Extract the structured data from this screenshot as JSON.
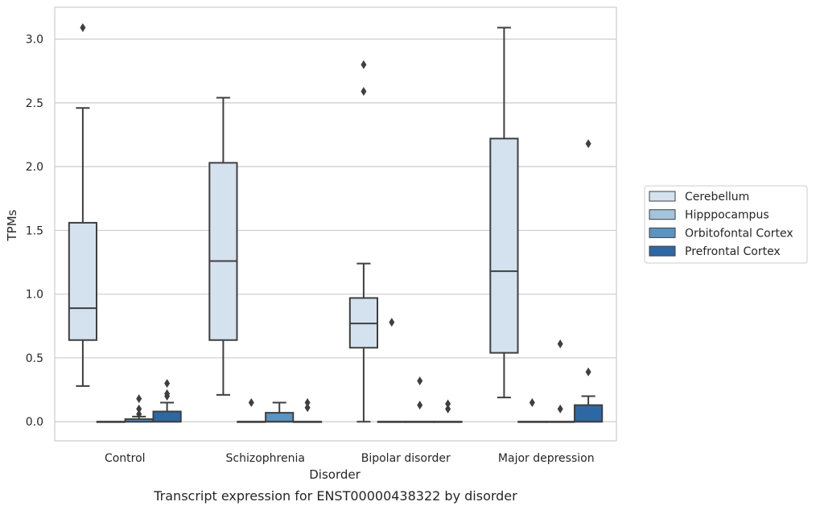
{
  "chart_data": {
    "type": "box",
    "title": "",
    "caption": "Transcript expression for ENST00000438322 by disorder",
    "xlabel": "Disorder",
    "ylabel": "TPMs",
    "ylim": [
      -0.15,
      3.25
    ],
    "yticks": [
      "0.0",
      "0.5",
      "1.0",
      "1.5",
      "2.0",
      "2.5",
      "3.0"
    ],
    "grid": "horizontal",
    "legend_position": "right",
    "categories": [
      "Control",
      "Schizophrenia",
      "Bipolar disorder",
      "Major depression"
    ],
    "series": [
      {
        "name": "Cerebellum",
        "color": "#d4e2f0",
        "boxes": [
          {
            "whisker_low": 0.28,
            "q1": 0.64,
            "median": 0.89,
            "q3": 1.56,
            "whisker_high": 2.46,
            "outliers": [
              3.09
            ]
          },
          {
            "whisker_low": 0.21,
            "q1": 0.64,
            "median": 1.26,
            "q3": 2.03,
            "whisker_high": 2.54,
            "outliers": []
          },
          {
            "whisker_low": 0.0,
            "q1": 0.58,
            "median": 0.77,
            "q3": 0.97,
            "whisker_high": 1.24,
            "outliers": [
              2.59,
              2.8
            ]
          },
          {
            "whisker_low": 0.19,
            "q1": 0.54,
            "median": 1.18,
            "q3": 2.22,
            "whisker_high": 3.09,
            "outliers": []
          }
        ]
      },
      {
        "name": "Hipppocampus",
        "color": "#a3c4dd",
        "boxes": [
          {
            "whisker_low": 0.0,
            "q1": 0.0,
            "median": 0.0,
            "q3": 0.0,
            "whisker_high": 0.0,
            "outliers": []
          },
          {
            "whisker_low": 0.0,
            "q1": 0.0,
            "median": 0.0,
            "q3": 0.0,
            "whisker_high": 0.0,
            "outliers": [
              0.15
            ]
          },
          {
            "whisker_low": 0.0,
            "q1": 0.0,
            "median": 0.0,
            "q3": 0.0,
            "whisker_high": 0.0,
            "outliers": [
              0.78
            ]
          },
          {
            "whisker_low": 0.0,
            "q1": 0.0,
            "median": 0.0,
            "q3": 0.0,
            "whisker_high": 0.0,
            "outliers": [
              0.15
            ]
          }
        ]
      },
      {
        "name": "Orbitofontal Cortex",
        "color": "#5a94c2",
        "boxes": [
          {
            "whisker_low": 0.0,
            "q1": 0.0,
            "median": 0.0,
            "q3": 0.02,
            "whisker_high": 0.04,
            "outliers": [
              0.06,
              0.1,
              0.18
            ]
          },
          {
            "whisker_low": 0.0,
            "q1": 0.0,
            "median": 0.0,
            "q3": 0.07,
            "whisker_high": 0.15,
            "outliers": []
          },
          {
            "whisker_low": 0.0,
            "q1": 0.0,
            "median": 0.0,
            "q3": 0.0,
            "whisker_high": 0.0,
            "outliers": [
              0.13,
              0.32
            ]
          },
          {
            "whisker_low": 0.0,
            "q1": 0.0,
            "median": 0.0,
            "q3": 0.0,
            "whisker_high": 0.0,
            "outliers": [
              0.1,
              0.61
            ]
          }
        ]
      },
      {
        "name": "Prefrontal Cortex",
        "color": "#2c68a6",
        "boxes": [
          {
            "whisker_low": 0.0,
            "q1": 0.0,
            "median": 0.0,
            "q3": 0.08,
            "whisker_high": 0.15,
            "outliers": [
              0.2,
              0.22,
              0.3
            ]
          },
          {
            "whisker_low": 0.0,
            "q1": 0.0,
            "median": 0.0,
            "q3": 0.0,
            "whisker_high": 0.0,
            "outliers": [
              0.11,
              0.15
            ]
          },
          {
            "whisker_low": 0.0,
            "q1": 0.0,
            "median": 0.0,
            "q3": 0.0,
            "whisker_high": 0.0,
            "outliers": [
              0.1,
              0.14
            ]
          },
          {
            "whisker_low": 0.0,
            "q1": 0.0,
            "median": 0.0,
            "q3": 0.13,
            "whisker_high": 0.2,
            "outliers": [
              0.39,
              2.18
            ]
          }
        ]
      }
    ]
  }
}
